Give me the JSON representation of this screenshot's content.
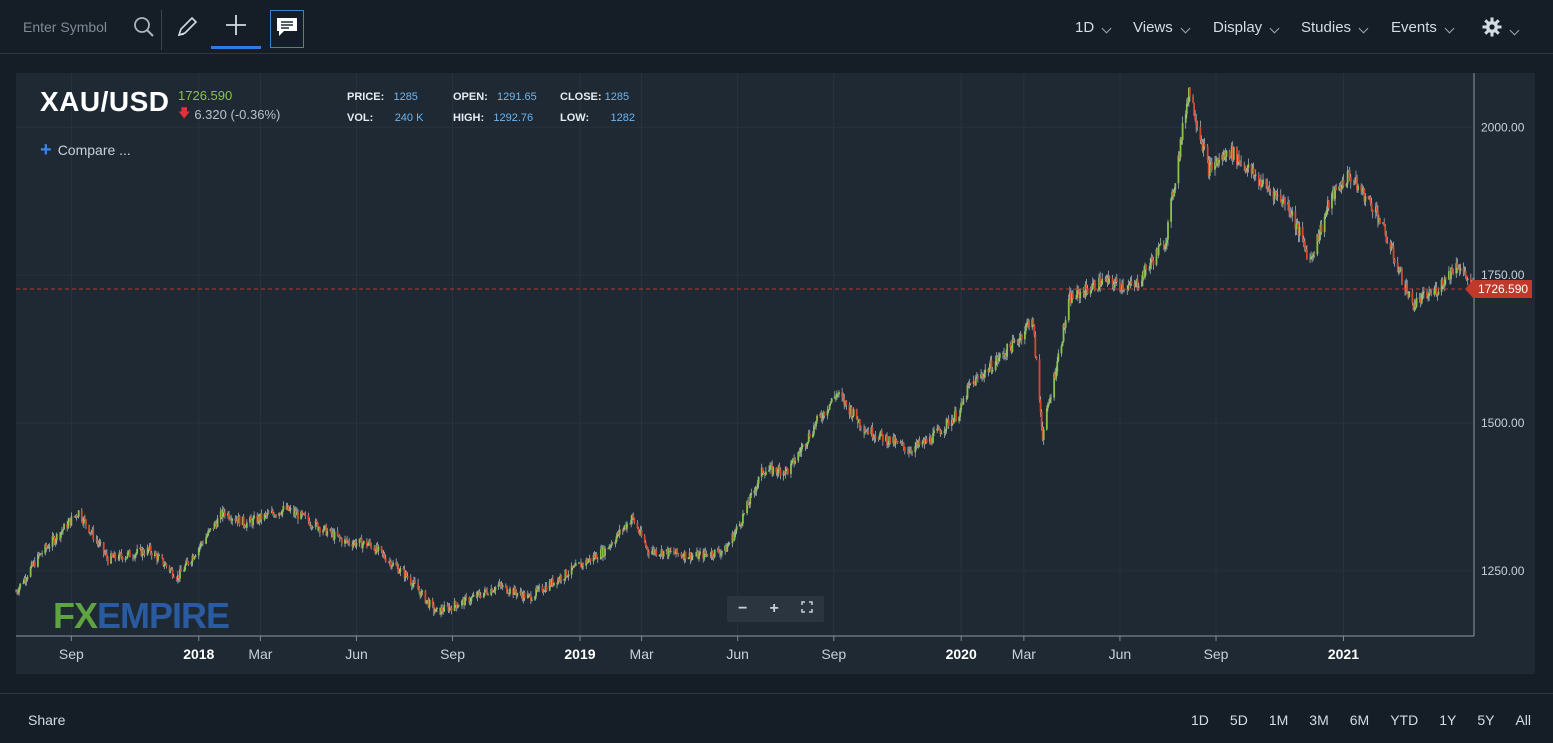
{
  "toolbar": {
    "search_placeholder": "Enter Symbol",
    "menus": [
      "1D",
      "Views",
      "Display",
      "Studies",
      "Events"
    ]
  },
  "legend": {
    "symbol": "XAU/USD",
    "last": "1726.590",
    "change": "6.320 (-0.36%)",
    "price_label": "PRICE:",
    "price": "1285",
    "vol_label": "VOL:",
    "vol": "240 K",
    "open_label": "OPEN:",
    "open": "1291.65",
    "high_label": "HIGH:",
    "high": "1292.76",
    "close_label": "CLOSE:",
    "close": "1285",
    "low_label": "LOW:",
    "low": "1282",
    "compare": "Compare ..."
  },
  "watermark": {
    "fx": "FX",
    "empire": "EMPIRE"
  },
  "footer": {
    "share": "Share",
    "ranges": [
      "1D",
      "5D",
      "1M",
      "3M",
      "6M",
      "YTD",
      "1Y",
      "5Y",
      "All"
    ]
  },
  "colors": {
    "up": "#8bc34a",
    "down": "#d9482b",
    "current_price_tag": "#c0392b",
    "accent": "#2f7de1"
  },
  "chart_data": {
    "type": "candlestick",
    "title": "XAU/USD",
    "current_price": 1726.59,
    "y_ticks": [
      1250.0,
      1500.0,
      1750.0,
      2000.0
    ],
    "ylim": [
      1150,
      2080
    ],
    "x_ticks": [
      "Sep",
      "2018",
      "Mar",
      "Jun",
      "Sep",
      "2019",
      "Mar",
      "Jun",
      "Sep",
      "2020",
      "Mar",
      "Jun",
      "Sep",
      "2021"
    ],
    "x_tick_dates": [
      "2017-09-01",
      "2018-01-01",
      "2018-03-01",
      "2018-06-01",
      "2018-09-01",
      "2019-01-01",
      "2019-03-01",
      "2019-06-01",
      "2019-09-01",
      "2020-01-01",
      "2020-03-01",
      "2020-06-01",
      "2020-09-01",
      "2021-01-01"
    ],
    "xlim": [
      "2017-07-10",
      "2021-05-06"
    ],
    "grid": true,
    "series": [
      {
        "dates": [
          "2017-07-10",
          "2017-08-01",
          "2017-09-08",
          "2017-10-06",
          "2017-11-15",
          "2017-12-12",
          "2018-01-25",
          "2018-02-15",
          "2018-03-25",
          "2018-04-11",
          "2018-05-20",
          "2018-06-14",
          "2018-07-20",
          "2018-08-16",
          "2018-09-15",
          "2018-10-15",
          "2018-11-13",
          "2018-12-14",
          "2019-01-25",
          "2019-02-20",
          "2019-03-07",
          "2019-04-23",
          "2019-05-20",
          "2019-06-03",
          "2019-06-25",
          "2019-07-20",
          "2019-08-15",
          "2019-09-04",
          "2019-10-01",
          "2019-11-12",
          "2019-12-01",
          "2019-12-31",
          "2020-01-08",
          "2020-02-24",
          "2020-03-09",
          "2020-03-19",
          "2020-04-14",
          "2020-05-15",
          "2020-06-15",
          "2020-07-15",
          "2020-08-06",
          "2020-08-25",
          "2020-09-15",
          "2020-10-15",
          "2020-11-09",
          "2020-11-30",
          "2020-12-20",
          "2021-01-06",
          "2021-02-01",
          "2021-03-08",
          "2021-03-31",
          "2021-04-20",
          "2021-05-06"
        ],
        "close": [
          1215,
          1275,
          1350,
          1270,
          1285,
          1240,
          1350,
          1330,
          1355,
          1340,
          1300,
          1295,
          1240,
          1180,
          1200,
          1225,
          1205,
          1240,
          1285,
          1340,
          1285,
          1275,
          1285,
          1330,
          1420,
          1420,
          1500,
          1550,
          1490,
          1455,
          1470,
          1520,
          1560,
          1640,
          1680,
          1480,
          1710,
          1740,
          1730,
          1810,
          2065,
          1930,
          1960,
          1905,
          1870,
          1775,
          1880,
          1920,
          1860,
          1700,
          1725,
          1770,
          1727
        ]
      }
    ]
  }
}
